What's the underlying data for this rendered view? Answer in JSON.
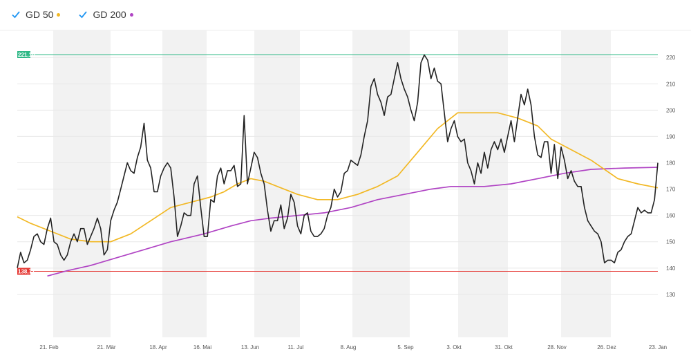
{
  "legend": [
    {
      "label": "GD 50",
      "color": "#f2b824",
      "check_color": "#2196f3"
    },
    {
      "label": "GD 200",
      "color": "#b044c4",
      "check_color": "#2196f3"
    }
  ],
  "chart_data": {
    "type": "line",
    "x_ticks": [
      "21. Feb",
      "21. Mär",
      "18. Apr",
      "16. Mai",
      "13. Jun",
      "11. Jul",
      "8. Aug",
      "5. Sep",
      "3. Okt",
      "31. Okt",
      "28. Nov",
      "26. Dez",
      "23. Jan"
    ],
    "y_ticks": [
      130,
      140,
      150,
      160,
      170,
      180,
      190,
      200,
      210,
      220
    ],
    "ylim": [
      120,
      230
    ],
    "grid": true,
    "legend_position": "top-left",
    "reference_lines": [
      {
        "label": "221,10",
        "value": 221.1,
        "color": "#2eb886"
      },
      {
        "label": "138,77",
        "value": 138.77,
        "color": "#e53935"
      }
    ],
    "series": [
      {
        "key": "price",
        "color": "#222222",
        "points": [
          [
            0,
            140
          ],
          [
            1,
            146
          ],
          [
            2,
            142
          ],
          [
            3,
            143
          ],
          [
            4,
            147
          ],
          [
            5,
            152
          ],
          [
            6,
            153
          ],
          [
            7,
            150
          ],
          [
            8,
            149
          ],
          [
            9,
            155
          ],
          [
            10,
            159
          ],
          [
            11,
            150
          ],
          [
            12,
            149
          ],
          [
            13,
            145
          ],
          [
            14,
            143
          ],
          [
            15,
            145
          ],
          [
            16,
            150
          ],
          [
            17,
            153
          ],
          [
            18,
            150
          ],
          [
            19,
            155
          ],
          [
            20,
            155
          ],
          [
            21,
            149
          ],
          [
            22,
            152
          ],
          [
            23,
            155
          ],
          [
            24,
            159
          ],
          [
            25,
            155
          ],
          [
            26,
            145
          ],
          [
            27,
            147
          ],
          [
            28,
            158
          ],
          [
            29,
            162
          ],
          [
            30,
            165
          ],
          [
            31,
            170
          ],
          [
            32,
            175
          ],
          [
            33,
            180
          ],
          [
            34,
            177
          ],
          [
            35,
            176
          ],
          [
            36,
            182
          ],
          [
            37,
            186
          ],
          [
            38,
            195
          ],
          [
            39,
            181
          ],
          [
            40,
            178
          ],
          [
            41,
            169
          ],
          [
            42,
            169
          ],
          [
            43,
            175
          ],
          [
            44,
            178
          ],
          [
            45,
            180
          ],
          [
            46,
            178
          ],
          [
            47,
            167
          ],
          [
            48,
            152
          ],
          [
            49,
            156
          ],
          [
            50,
            161
          ],
          [
            51,
            160
          ],
          [
            52,
            160
          ],
          [
            53,
            172
          ],
          [
            54,
            175
          ],
          [
            55,
            163
          ],
          [
            56,
            152
          ],
          [
            57,
            152
          ],
          [
            58,
            166
          ],
          [
            59,
            165
          ],
          [
            60,
            175
          ],
          [
            61,
            178
          ],
          [
            62,
            172
          ],
          [
            63,
            177
          ],
          [
            64,
            177
          ],
          [
            65,
            179
          ],
          [
            66,
            171
          ],
          [
            67,
            172
          ],
          [
            68,
            198
          ],
          [
            69,
            172
          ],
          [
            70,
            178
          ],
          [
            71,
            184
          ],
          [
            72,
            182
          ],
          [
            73,
            176
          ],
          [
            74,
            172
          ],
          [
            75,
            162
          ],
          [
            76,
            154
          ],
          [
            77,
            158
          ],
          [
            78,
            158
          ],
          [
            79,
            164
          ],
          [
            80,
            155
          ],
          [
            81,
            159
          ],
          [
            82,
            168
          ],
          [
            83,
            165
          ],
          [
            84,
            156
          ],
          [
            85,
            153
          ],
          [
            86,
            160
          ],
          [
            87,
            161
          ],
          [
            88,
            154
          ],
          [
            89,
            152
          ],
          [
            90,
            152
          ],
          [
            91,
            153
          ],
          [
            92,
            155
          ],
          [
            93,
            160
          ],
          [
            94,
            163
          ],
          [
            95,
            170
          ],
          [
            96,
            167
          ],
          [
            97,
            169
          ],
          [
            98,
            176
          ],
          [
            99,
            177
          ],
          [
            100,
            181
          ],
          [
            101,
            180
          ],
          [
            102,
            179
          ],
          [
            103,
            183
          ],
          [
            104,
            190
          ],
          [
            105,
            196
          ],
          [
            106,
            209
          ],
          [
            107,
            212
          ],
          [
            108,
            206
          ],
          [
            109,
            203
          ],
          [
            110,
            198
          ],
          [
            111,
            205
          ],
          [
            112,
            206
          ],
          [
            113,
            212
          ],
          [
            114,
            218
          ],
          [
            115,
            212
          ],
          [
            116,
            208
          ],
          [
            117,
            205
          ],
          [
            118,
            200
          ],
          [
            119,
            196
          ],
          [
            120,
            203
          ],
          [
            121,
            218
          ],
          [
            122,
            221
          ],
          [
            123,
            219
          ],
          [
            124,
            212
          ],
          [
            125,
            216
          ],
          [
            126,
            211
          ],
          [
            127,
            210
          ],
          [
            128,
            199
          ],
          [
            129,
            188
          ],
          [
            130,
            193
          ],
          [
            131,
            196
          ],
          [
            132,
            190
          ],
          [
            133,
            188
          ],
          [
            134,
            189
          ],
          [
            135,
            180
          ],
          [
            136,
            177
          ],
          [
            137,
            172
          ],
          [
            138,
            180
          ],
          [
            139,
            176
          ],
          [
            140,
            184
          ],
          [
            141,
            178
          ],
          [
            142,
            185
          ],
          [
            143,
            188
          ],
          [
            144,
            185
          ],
          [
            145,
            189
          ],
          [
            146,
            184
          ],
          [
            147,
            190
          ],
          [
            148,
            196
          ],
          [
            149,
            188
          ],
          [
            150,
            197
          ],
          [
            151,
            206
          ],
          [
            152,
            202
          ],
          [
            153,
            208
          ],
          [
            154,
            202
          ],
          [
            155,
            190
          ],
          [
            156,
            183
          ],
          [
            157,
            182
          ],
          [
            158,
            188
          ],
          [
            159,
            188
          ],
          [
            160,
            176
          ],
          [
            161,
            187
          ],
          [
            162,
            174
          ],
          [
            163,
            186
          ],
          [
            164,
            181
          ],
          [
            165,
            174
          ],
          [
            166,
            177
          ],
          [
            167,
            173
          ],
          [
            168,
            171
          ],
          [
            169,
            171
          ],
          [
            170,
            163
          ],
          [
            171,
            158
          ],
          [
            172,
            156
          ],
          [
            173,
            154
          ],
          [
            174,
            153
          ],
          [
            175,
            150
          ],
          [
            176,
            142
          ],
          [
            177,
            143
          ],
          [
            178,
            143
          ],
          [
            179,
            142
          ],
          [
            180,
            146
          ],
          [
            181,
            147
          ],
          [
            182,
            150
          ],
          [
            183,
            152
          ],
          [
            184,
            153
          ],
          [
            185,
            158
          ],
          [
            186,
            163
          ],
          [
            187,
            161
          ],
          [
            188,
            162
          ],
          [
            189,
            161
          ],
          [
            190,
            161
          ],
          [
            191,
            166
          ],
          [
            192,
            180
          ]
        ]
      },
      {
        "key": "gd50",
        "color": "#f2b824",
        "points": [
          [
            0,
            159.5
          ],
          [
            4,
            157
          ],
          [
            10,
            154
          ],
          [
            16,
            151
          ],
          [
            22,
            150
          ],
          [
            28,
            150
          ],
          [
            34,
            153
          ],
          [
            40,
            158
          ],
          [
            46,
            163
          ],
          [
            52,
            165
          ],
          [
            58,
            167
          ],
          [
            62,
            169
          ],
          [
            66,
            172
          ],
          [
            70,
            174
          ],
          [
            74,
            173
          ],
          [
            78,
            171
          ],
          [
            84,
            168
          ],
          [
            90,
            166
          ],
          [
            96,
            166
          ],
          [
            102,
            168
          ],
          [
            108,
            171
          ],
          [
            114,
            175
          ],
          [
            120,
            184
          ],
          [
            126,
            193
          ],
          [
            132,
            199
          ],
          [
            136,
            199
          ],
          [
            144,
            199
          ],
          [
            150,
            197
          ],
          [
            156,
            194
          ],
          [
            160,
            189
          ],
          [
            166,
            185
          ],
          [
            172,
            181
          ],
          [
            180,
            174
          ],
          [
            186,
            172
          ],
          [
            192,
            170.5
          ]
        ]
      },
      {
        "key": "gd200",
        "color": "#b044c4",
        "points": [
          [
            9,
            137
          ],
          [
            15,
            139
          ],
          [
            22,
            141
          ],
          [
            30,
            144
          ],
          [
            38,
            147
          ],
          [
            46,
            150
          ],
          [
            56,
            153
          ],
          [
            64,
            156
          ],
          [
            70,
            158
          ],
          [
            76,
            159
          ],
          [
            84,
            160
          ],
          [
            92,
            161
          ],
          [
            100,
            163
          ],
          [
            108,
            166
          ],
          [
            116,
            168
          ],
          [
            124,
            170
          ],
          [
            130,
            171
          ],
          [
            140,
            171
          ],
          [
            148,
            172
          ],
          [
            156,
            174
          ],
          [
            164,
            176
          ],
          [
            172,
            177.5
          ],
          [
            182,
            178
          ],
          [
            192,
            178.3
          ]
        ]
      }
    ]
  }
}
